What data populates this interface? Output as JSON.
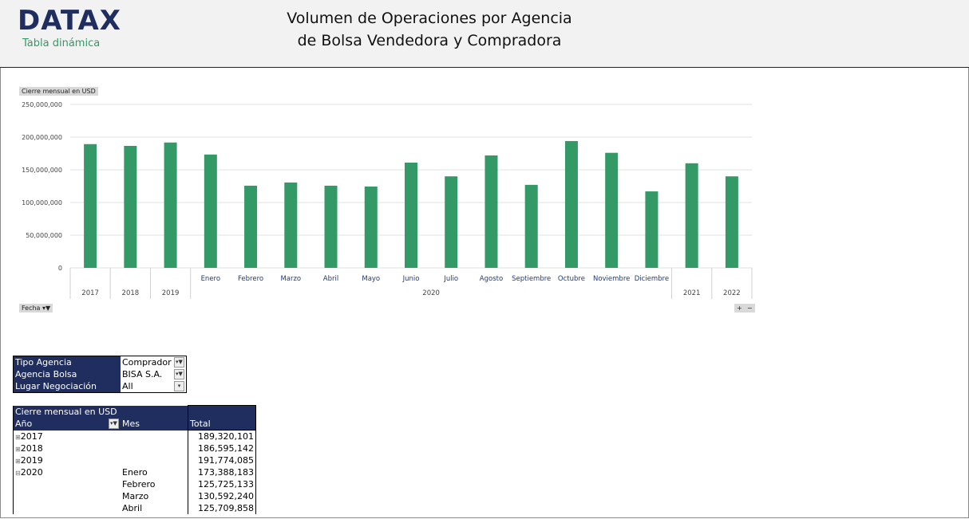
{
  "header": {
    "logo": "DATAX",
    "subtitle": "Tabla dinámica",
    "title_line1": "Volumen de Operaciones por Agencia",
    "title_line2": "de Bolsa Vendedora y Compradora"
  },
  "chart_controls": {
    "value_field": "Cierre mensual en USD",
    "axis_field": "Fecha",
    "expand": "+",
    "collapse": "−"
  },
  "chart_data": {
    "type": "bar",
    "color": "#339966",
    "ylim": [
      0,
      250000000
    ],
    "yticks": [
      "250,000,000",
      "200,000,000",
      "150,000,000",
      "100,000,000",
      "50,000,000",
      "0"
    ],
    "grid": true,
    "categories": [
      "2017",
      "2018",
      "2019",
      "Enero",
      "Febrero",
      "Marzo",
      "Abril",
      "Mayo",
      "Junio",
      "Julio",
      "Agosto",
      "Septiembre",
      "Octubre",
      "Noviembre",
      "Diciembre",
      "2021",
      "2022"
    ],
    "group_label": "2020",
    "values": [
      189320101,
      186595142,
      191774085,
      173388183,
      125725133,
      130592240,
      125709858,
      124400000,
      161000000,
      140000000,
      172000000,
      127000000,
      194000000,
      176000000,
      117000000,
      160000000,
      140000000
    ]
  },
  "filters": [
    {
      "label": "Tipo Agencia",
      "value": "Comprador"
    },
    {
      "label": "Agencia Bolsa",
      "value": "BISA S.A."
    },
    {
      "label": "Lugar Negociación",
      "value": "All"
    }
  ],
  "pivot": {
    "value_header": "Cierre mensual en USD",
    "col_year": "Año",
    "col_month": "Mes",
    "col_total": "Total",
    "rows": [
      {
        "year": "2017",
        "month": "",
        "total": "189,320,101",
        "sym": "⊞"
      },
      {
        "year": "2018",
        "month": "",
        "total": "186,595,142",
        "sym": "⊞"
      },
      {
        "year": "2019",
        "month": "",
        "total": "191,774,085",
        "sym": "⊞"
      },
      {
        "year": "2020",
        "month": "Enero",
        "total": "173,388,183",
        "sym": "⊟"
      },
      {
        "year": "",
        "month": "Febrero",
        "total": "125,725,133",
        "sym": ""
      },
      {
        "year": "",
        "month": "Marzo",
        "total": "130,592,240",
        "sym": ""
      },
      {
        "year": "",
        "month": "Abril",
        "total": "125,709,858",
        "sym": ""
      }
    ]
  }
}
